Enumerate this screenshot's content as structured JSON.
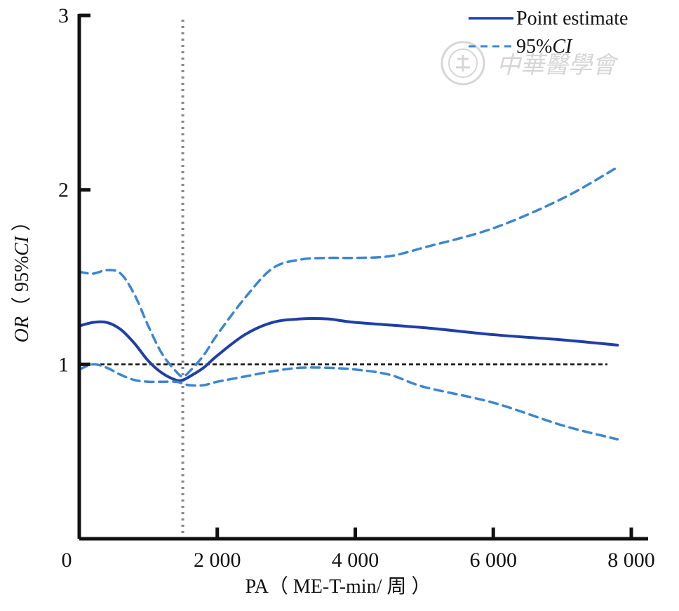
{
  "chart_data": {
    "type": "line",
    "title": "",
    "xlabel": "PA（ ME-T-min/ 周 ）",
    "ylabel": {
      "italic": "OR",
      "rest": "（ 95%",
      "italic2": "CI",
      "end": " ）"
    },
    "xlim": [
      0,
      8000
    ],
    "ylim": [
      0,
      3
    ],
    "x_ticks": [
      {
        "value": 0,
        "label": "0"
      },
      {
        "value": 2000,
        "label": "2 000"
      },
      {
        "value": 4000,
        "label": "4 000"
      },
      {
        "value": 6000,
        "label": "6 000"
      },
      {
        "value": 8000,
        "label": "8 000"
      }
    ],
    "y_ticks": [
      {
        "value": 1,
        "label": "1"
      },
      {
        "value": 2,
        "label": "2"
      },
      {
        "value": 3,
        "label": "3"
      }
    ],
    "legend": {
      "placement": "top-right",
      "point_label": "Point estimate",
      "ci_label": "95%",
      "ci_label_italic": "CI"
    },
    "reference_lines": [
      {
        "orientation": "horizontal",
        "value": 1,
        "style": "dashed",
        "color": "#111111"
      },
      {
        "orientation": "vertical",
        "value": 1500,
        "style": "dotted",
        "color": "#888888"
      }
    ],
    "colors": {
      "point": "#1f3fa6",
      "ci": "#3a86d4"
    },
    "series": [
      {
        "role": "point",
        "style": "solid",
        "x": [
          0,
          200,
          400,
          600,
          800,
          1000,
          1200,
          1400,
          1500,
          1600,
          1800,
          2000,
          2400,
          2800,
          3200,
          3600,
          4000,
          5000,
          6000,
          7000,
          7800
        ],
        "y": [
          1.22,
          1.24,
          1.24,
          1.2,
          1.12,
          1.02,
          0.95,
          0.91,
          0.91,
          0.93,
          0.98,
          1.05,
          1.17,
          1.24,
          1.26,
          1.26,
          1.24,
          1.21,
          1.17,
          1.14,
          1.11
        ]
      },
      {
        "role": "ci-upper",
        "style": "dashed",
        "x": [
          0,
          200,
          400,
          600,
          800,
          1000,
          1200,
          1400,
          1500,
          1600,
          1800,
          2000,
          2400,
          2800,
          3200,
          3600,
          4000,
          4500,
          5000,
          6000,
          7000,
          7800
        ],
        "y": [
          1.53,
          1.52,
          1.54,
          1.52,
          1.4,
          1.22,
          1.06,
          0.96,
          0.93,
          0.96,
          1.05,
          1.17,
          1.38,
          1.55,
          1.6,
          1.61,
          1.61,
          1.62,
          1.67,
          1.78,
          1.95,
          2.13
        ]
      },
      {
        "role": "ci-lower",
        "style": "dashed",
        "x": [
          0,
          200,
          400,
          600,
          800,
          1000,
          1200,
          1400,
          1500,
          1600,
          1800,
          2000,
          2400,
          2800,
          3200,
          3600,
          4000,
          4500,
          5000,
          6000,
          7000,
          7800
        ],
        "y": [
          0.97,
          1.0,
          0.98,
          0.94,
          0.91,
          0.9,
          0.9,
          0.9,
          0.89,
          0.88,
          0.88,
          0.9,
          0.93,
          0.96,
          0.98,
          0.98,
          0.97,
          0.94,
          0.87,
          0.78,
          0.65,
          0.57
        ]
      }
    ]
  },
  "watermark": {
    "seal_icon": "society-seal-icon",
    "text": "中華醫學會"
  }
}
